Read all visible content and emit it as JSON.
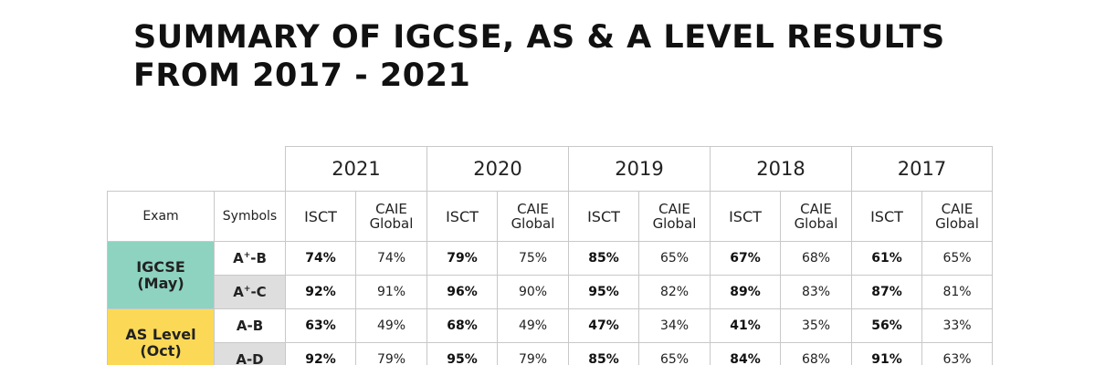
{
  "title": {
    "line1": "SUMMARY OF IGCSE, AS & A LEVEL RESULTS",
    "line2": "FROM 2017 - 2021"
  },
  "table": {
    "years": [
      "2021",
      "2020",
      "2019",
      "2018",
      "2017"
    ],
    "headers": {
      "exam": "Exam",
      "symbols": "Symbols",
      "isct": "ISCT",
      "caie_line1": "CAIE",
      "caie_line2": "Global"
    },
    "groups": [
      {
        "exam_line1": "IGCSE",
        "exam_line2": "(May)",
        "color": "#8dd3c0",
        "rows": [
          {
            "symbol_main": "A",
            "symbol_sup": "+",
            "symbol_rest": "-B",
            "values": [
              [
                "74%",
                "74%"
              ],
              [
                "79%",
                "75%"
              ],
              [
                "85%",
                "65%"
              ],
              [
                "67%",
                "68%"
              ],
              [
                "61%",
                "65%"
              ]
            ]
          },
          {
            "symbol_main": "A",
            "symbol_sup": "+",
            "symbol_rest": "-C",
            "values": [
              [
                "92%",
                "91%"
              ],
              [
                "96%",
                "90%"
              ],
              [
                "95%",
                "82%"
              ],
              [
                "89%",
                "83%"
              ],
              [
                "87%",
                "81%"
              ]
            ]
          }
        ]
      },
      {
        "exam_line1": "AS Level",
        "exam_line2": "(Oct)",
        "color": "#fbd957",
        "rows": [
          {
            "symbol_main": "A-B",
            "symbol_sup": "",
            "symbol_rest": "",
            "values": [
              [
                "63%",
                "49%"
              ],
              [
                "68%",
                "49%"
              ],
              [
                "47%",
                "34%"
              ],
              [
                "41%",
                "35%"
              ],
              [
                "56%",
                "33%"
              ]
            ]
          },
          {
            "symbol_main": "A-D",
            "symbol_sup": "",
            "symbol_rest": "",
            "values": [
              [
                "92%",
                "79%"
              ],
              [
                "95%",
                "79%"
              ],
              [
                "85%",
                "65%"
              ],
              [
                "84%",
                "68%"
              ],
              [
                "91%",
                "63%"
              ]
            ]
          }
        ]
      }
    ]
  }
}
